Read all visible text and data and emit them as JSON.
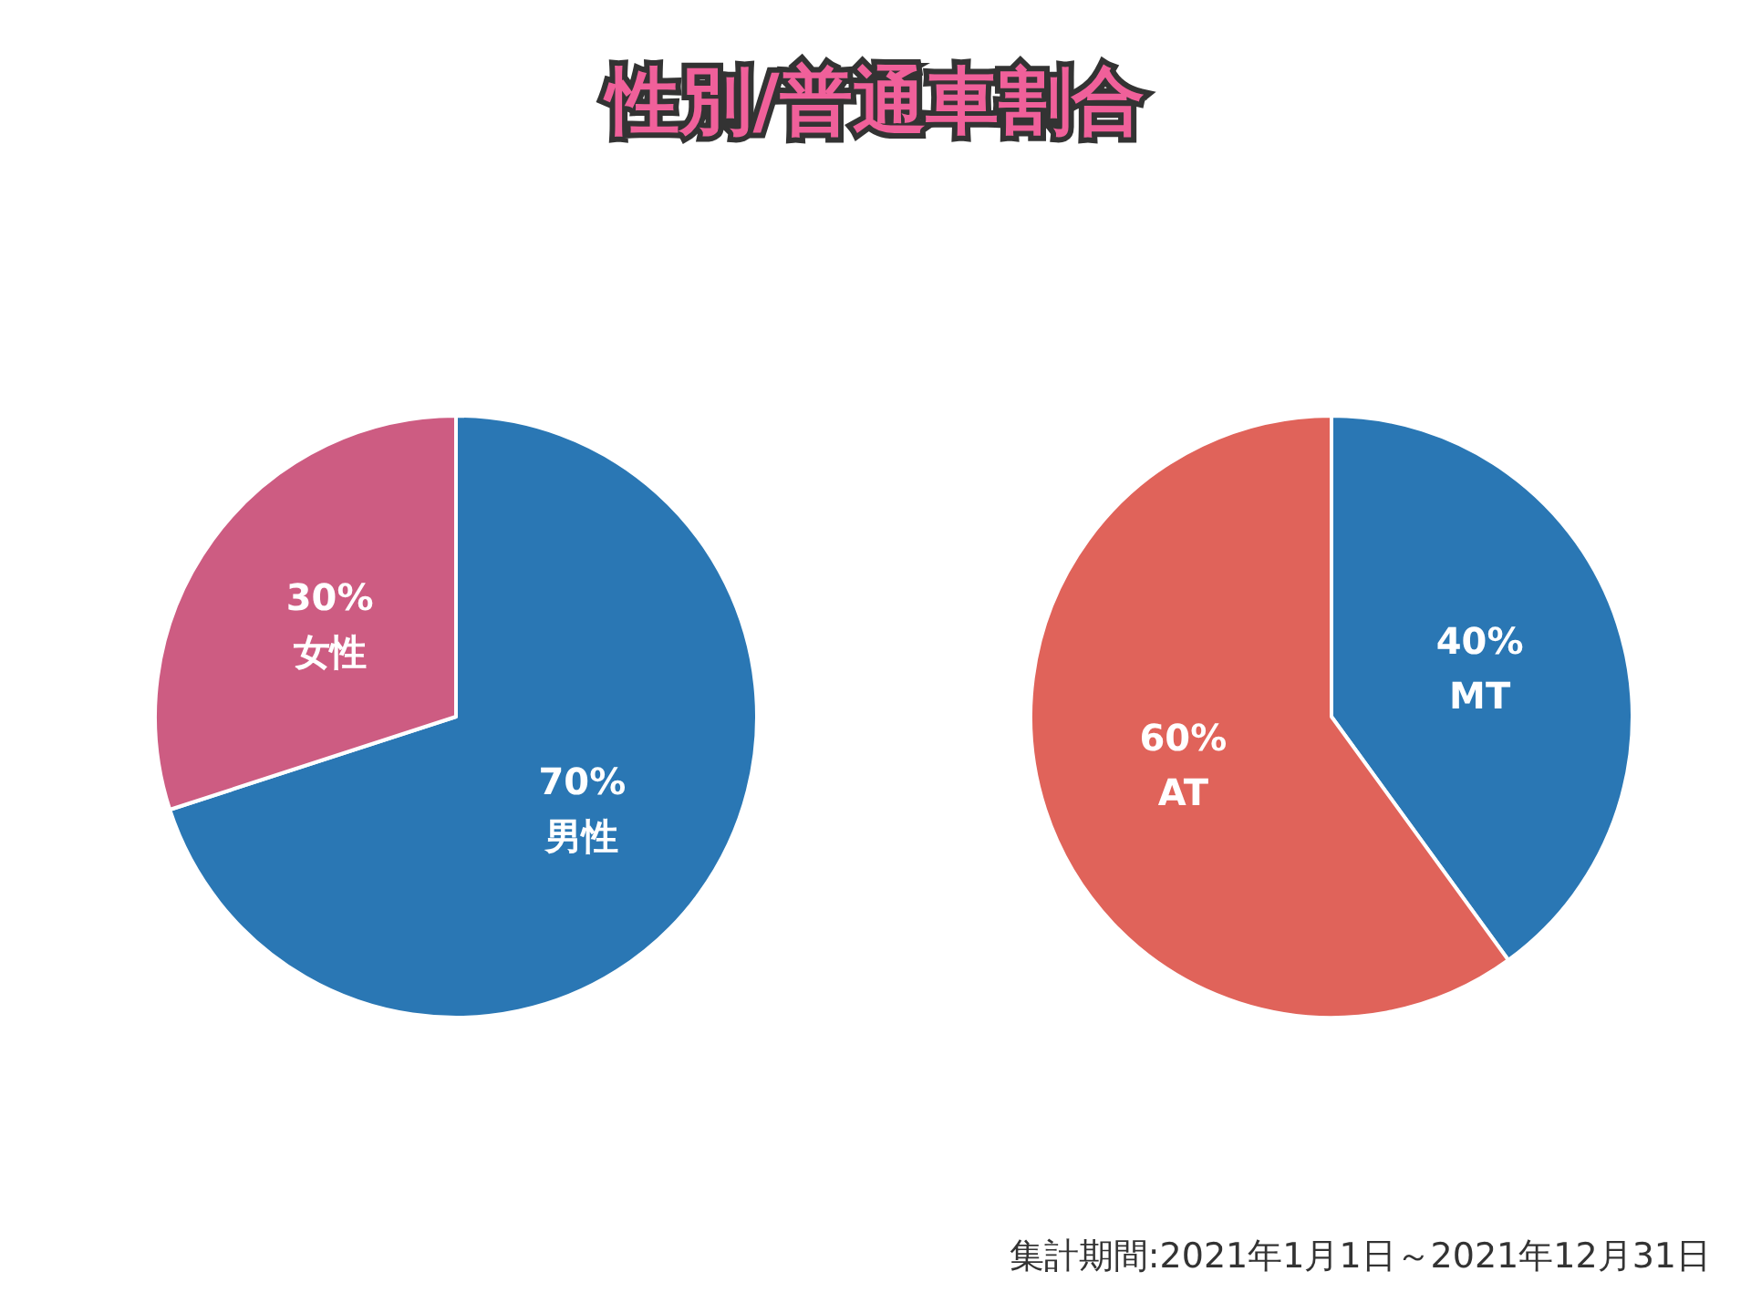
{
  "chart_data": [
    {
      "type": "pie",
      "title": "性別/普通車割合",
      "categories": [
        "男性",
        "女性"
      ],
      "values": [
        70,
        30
      ],
      "colors": [
        "#2a77b4",
        "#cd5c82"
      ],
      "value_labels": [
        "70%",
        "30%"
      ]
    },
    {
      "type": "pie",
      "categories": [
        "MT",
        "AT"
      ],
      "values": [
        40,
        60
      ],
      "colors": [
        "#2a77b4",
        "#e0635a"
      ],
      "value_labels": [
        "40%",
        "60%"
      ],
      "annotations": [
        "集計期間:2021年1月1日～2021年12月31日"
      ]
    }
  ]
}
